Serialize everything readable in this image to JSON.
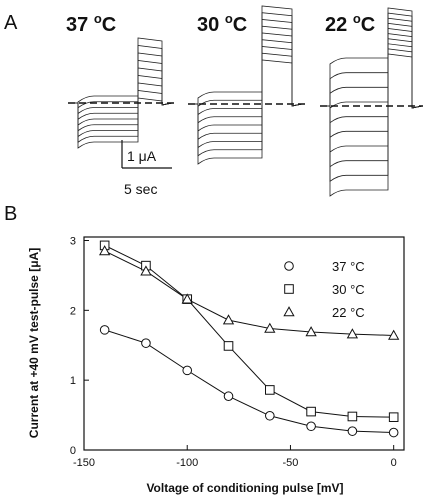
{
  "panel_a": {
    "letter": "A",
    "traces": [
      {
        "temp_label": "37",
        "unit": "C"
      },
      {
        "temp_label": "30",
        "unit": "C"
      },
      {
        "temp_label": "22",
        "unit": "C"
      }
    ],
    "degree_symbol": "o",
    "scale_current": "1 μA",
    "scale_time": "5 sec"
  },
  "panel_b": {
    "letter": "B"
  },
  "chart_data": {
    "type": "line",
    "xlabel": "Voltage of conditioning pulse [mV]",
    "ylabel": "Current at +40 mV test-pulse [μA]",
    "xlim": [
      -150,
      5
    ],
    "ylim": [
      0,
      3.05
    ],
    "xticks": [
      -150,
      -100,
      -50,
      0
    ],
    "yticks": [
      0,
      1,
      2,
      3
    ],
    "grid": false,
    "legend_position": "top-right",
    "x": [
      -140,
      -120,
      -100,
      -80,
      -60,
      -40,
      -20,
      0
    ],
    "series": [
      {
        "name": "37 °C",
        "marker": "circle",
        "values": [
          1.72,
          1.53,
          1.14,
          0.77,
          0.49,
          0.34,
          0.27,
          0.25
        ]
      },
      {
        "name": "30 °C",
        "marker": "square",
        "values": [
          2.93,
          2.64,
          2.16,
          1.49,
          0.86,
          0.55,
          0.48,
          0.47
        ]
      },
      {
        "name": "22 °C",
        "marker": "triangle",
        "values": [
          2.85,
          2.56,
          2.16,
          1.86,
          1.74,
          1.69,
          1.66,
          1.64
        ]
      }
    ]
  }
}
